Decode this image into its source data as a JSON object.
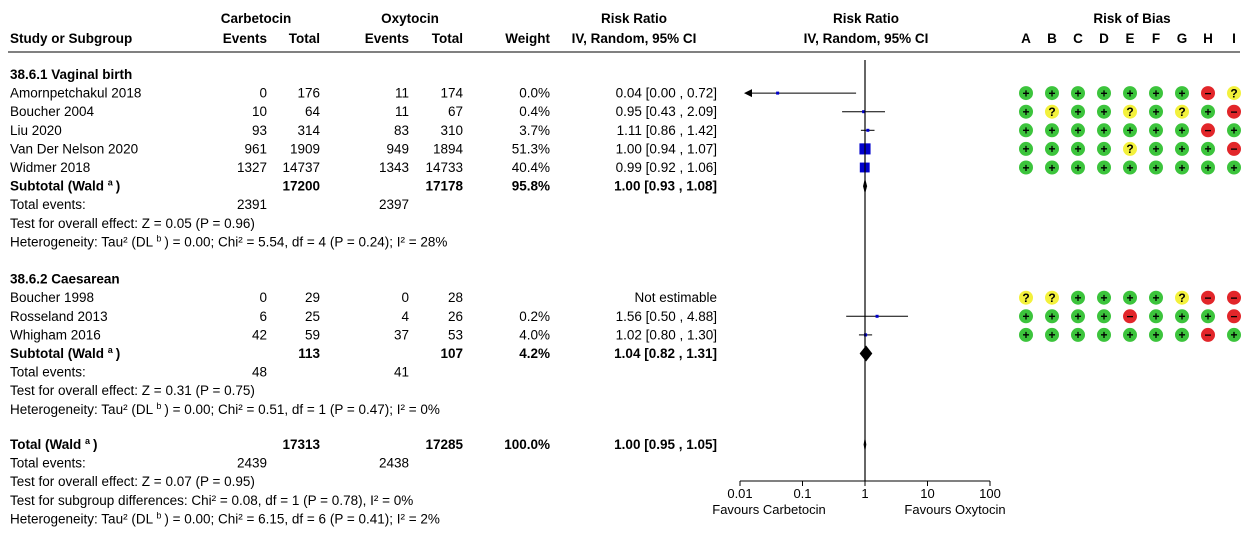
{
  "headers": {
    "group1": "Carbetocin",
    "group2": "Oxytocin",
    "rr_title": "Risk Ratio",
    "rr_method": "IV, Random, 95% CI",
    "plot_title": "Risk Ratio",
    "plot_method": "IV, Random, 95% CI",
    "bias_title": "Risk of Bias",
    "study": "Study or Subgroup",
    "events": "Events",
    "total": "Total",
    "weight": "Weight"
  },
  "bias_letters": [
    "A",
    "B",
    "C",
    "D",
    "E",
    "F",
    "G",
    "H",
    "I"
  ],
  "subgroups": [
    {
      "title": "38.6.1 Vaginal birth",
      "studies": [
        {
          "name": "Amornpetchakul 2018",
          "c_events": "0",
          "c_total": "176",
          "o_events": "11",
          "o_total": "174",
          "weight": "0.0%",
          "ci": "0.04 [0.00 , 0.72]",
          "rr": 0.04,
          "lo": 0.0,
          "hi": 0.72,
          "w": 0.0,
          "arrow_left": true,
          "bias": [
            "+",
            "+",
            "+",
            "+",
            "+",
            "+",
            "+",
            "-",
            "?"
          ]
        },
        {
          "name": "Boucher 2004",
          "c_events": "10",
          "c_total": "64",
          "o_events": "11",
          "o_total": "67",
          "weight": "0.4%",
          "ci": "0.95 [0.43 , 2.09]",
          "rr": 0.95,
          "lo": 0.43,
          "hi": 2.09,
          "w": 0.4,
          "bias": [
            "+",
            "?",
            "+",
            "+",
            "?",
            "+",
            "?",
            "+",
            "-"
          ]
        },
        {
          "name": "Liu 2020",
          "c_events": "93",
          "c_total": "314",
          "o_events": "83",
          "o_total": "310",
          "weight": "3.7%",
          "ci": "1.11 [0.86 , 1.42]",
          "rr": 1.11,
          "lo": 0.86,
          "hi": 1.42,
          "w": 3.7,
          "bias": [
            "+",
            "+",
            "+",
            "+",
            "+",
            "+",
            "+",
            "-",
            "+"
          ]
        },
        {
          "name": "Van Der Nelson 2020",
          "c_events": "961",
          "c_total": "1909",
          "o_events": "949",
          "o_total": "1894",
          "weight": "51.3%",
          "ci": "1.00 [0.94 , 1.07]",
          "rr": 1.0,
          "lo": 0.94,
          "hi": 1.07,
          "w": 51.3,
          "bias": [
            "+",
            "+",
            "+",
            "+",
            "?",
            "+",
            "+",
            "+",
            "-"
          ]
        },
        {
          "name": "Widmer 2018",
          "c_events": "1327",
          "c_total": "14737",
          "o_events": "1343",
          "o_total": "14733",
          "weight": "40.4%",
          "ci": "0.99 [0.92 , 1.06]",
          "rr": 0.99,
          "lo": 0.92,
          "hi": 1.06,
          "w": 40.4,
          "bias": [
            "+",
            "+",
            "+",
            "+",
            "+",
            "+",
            "+",
            "+",
            "+"
          ]
        }
      ],
      "subtotal": {
        "label": "Subtotal (Wald",
        "sup": "a",
        "close": ")",
        "c_total": "17200",
        "o_total": "17178",
        "weight": "95.8%",
        "ci": "1.00 [0.93 , 1.08]",
        "rr": 1.0,
        "lo": 0.93,
        "hi": 1.08
      },
      "total_events": {
        "label": "Total events:",
        "c": "2391",
        "o": "2397"
      },
      "overall_effect": "Test for overall effect: Z = 0.05 (P = 0.96)",
      "heterogeneity": {
        "pre": "Heterogeneity: Tau² (DL",
        "sup": "b",
        "post": ") = 0.00; Chi² = 5.54, df = 4 (P = 0.24); I² = 28%"
      }
    },
    {
      "title": "38.6.2 Caesarean",
      "studies": [
        {
          "name": "Boucher 1998",
          "c_events": "0",
          "c_total": "29",
          "o_events": "0",
          "o_total": "28",
          "weight": "",
          "ci": "Not estimable",
          "rr": null,
          "lo": null,
          "hi": null,
          "w": 0,
          "bias": [
            "?",
            "?",
            "+",
            "+",
            "+",
            "+",
            "?",
            "-",
            "-"
          ]
        },
        {
          "name": "Rosseland 2013",
          "c_events": "6",
          "c_total": "25",
          "o_events": "4",
          "o_total": "26",
          "weight": "0.2%",
          "ci": "1.56 [0.50 , 4.88]",
          "rr": 1.56,
          "lo": 0.5,
          "hi": 4.88,
          "w": 0.2,
          "bias": [
            "+",
            "+",
            "+",
            "+",
            "-",
            "+",
            "+",
            "+",
            "-"
          ]
        },
        {
          "name": "Whigham 2016",
          "c_events": "42",
          "c_total": "59",
          "o_events": "37",
          "o_total": "53",
          "weight": "4.0%",
          "ci": "1.02 [0.80 , 1.30]",
          "rr": 1.02,
          "lo": 0.8,
          "hi": 1.3,
          "w": 4.0,
          "bias": [
            "+",
            "+",
            "+",
            "+",
            "+",
            "+",
            "+",
            "-",
            "+"
          ]
        }
      ],
      "subtotal": {
        "label": "Subtotal (Wald",
        "sup": "a",
        "close": ")",
        "c_total": "113",
        "o_total": "107",
        "weight": "4.2%",
        "ci": "1.04 [0.82 , 1.31]",
        "rr": 1.04,
        "lo": 0.82,
        "hi": 1.31
      },
      "total_events": {
        "label": "Total events:",
        "c": "48",
        "o": "41"
      },
      "overall_effect": "Test for overall effect: Z = 0.31 (P = 0.75)",
      "heterogeneity": {
        "pre": "Heterogeneity: Tau² (DL",
        "sup": "b",
        "post": ") = 0.00; Chi² = 0.51, df = 1 (P = 0.47); I² = 0%"
      }
    }
  ],
  "overall": {
    "label": "Total (Wald",
    "sup": "a",
    "close": ")",
    "c_total": "17313",
    "o_total": "17285",
    "weight": "100.0%",
    "ci": "1.00 [0.95 , 1.05]",
    "rr": 1.0,
    "lo": 0.95,
    "hi": 1.05,
    "total_events": {
      "label": "Total events:",
      "c": "2439",
      "o": "2438"
    },
    "overall_effect": "Test for overall effect: Z = 0.07 (P = 0.95)",
    "subgroup_diff": "Test for subgroup differences: Chi² = 0.08, df = 1 (P = 0.78), I² = 0%",
    "heterogeneity": {
      "pre": "Heterogeneity: Tau² (DL",
      "sup": "b",
      "post": ") = 0.00; Chi² = 6.15, df = 6 (P = 0.41); I² = 2%"
    }
  },
  "axis": {
    "ticks": [
      0.01,
      0.1,
      1,
      10,
      100
    ],
    "tick_labels": [
      "0.01",
      "0.1",
      "1",
      "10",
      "100"
    ],
    "favours_left": "Favours Carbetocin",
    "favours_right": "Favours Oxytocin",
    "scale": "log"
  },
  "colors": {
    "square": "#0000cc",
    "low_risk": "#3cc43c",
    "unclear_risk": "#f3f13c",
    "high_risk": "#e2262a"
  },
  "chart_data": {
    "type": "scatter",
    "subtype": "forest-plot",
    "x_scale": "log",
    "xlim": [
      0.01,
      100
    ],
    "reference_line": 1,
    "studies": [
      {
        "name": "Amornpetchakul 2018",
        "rr": 0.04,
        "lo": 0.0,
        "hi": 0.72,
        "weight": 0.0
      },
      {
        "name": "Boucher 2004",
        "rr": 0.95,
        "lo": 0.43,
        "hi": 2.09,
        "weight": 0.4
      },
      {
        "name": "Liu 2020",
        "rr": 1.11,
        "lo": 0.86,
        "hi": 1.42,
        "weight": 3.7
      },
      {
        "name": "Van Der Nelson 2020",
        "rr": 1.0,
        "lo": 0.94,
        "hi": 1.07,
        "weight": 51.3
      },
      {
        "name": "Widmer 2018",
        "rr": 0.99,
        "lo": 0.92,
        "hi": 1.06,
        "weight": 40.4
      },
      {
        "name": "Boucher 1998",
        "rr": null,
        "lo": null,
        "hi": null,
        "weight": null
      },
      {
        "name": "Rosseland 2013",
        "rr": 1.56,
        "lo": 0.5,
        "hi": 4.88,
        "weight": 0.2
      },
      {
        "name": "Whigham 2016",
        "rr": 1.02,
        "lo": 0.8,
        "hi": 1.3,
        "weight": 4.0
      }
    ],
    "pooled": [
      {
        "name": "Subtotal 38.6.1 Vaginal birth",
        "rr": 1.0,
        "lo": 0.93,
        "hi": 1.08
      },
      {
        "name": "Subtotal 38.6.2 Caesarean",
        "rr": 1.04,
        "lo": 0.82,
        "hi": 1.31
      },
      {
        "name": "Total",
        "rr": 1.0,
        "lo": 0.95,
        "hi": 1.05
      }
    ]
  }
}
